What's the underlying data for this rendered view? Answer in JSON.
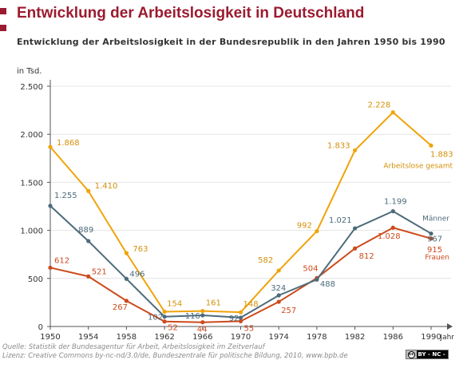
{
  "header": {
    "title": "Entwicklung der Arbeitslosigkeit in Deutschland",
    "subtitle": "Entwicklung der Arbeitslosigkeit in der Bundesrepublik in den Jahren 1950 bis 1990"
  },
  "footer": {
    "source_line1": "Quelle: Statistik der Bundesagentur für Arbeit, Arbeitslosigkeit im Zeitverlauf",
    "source_line2": "Lizenz: Creative Commons by-nc-nd/3.0/de, Bundeszentrale für politische Bildung, 2010, www.bpb.de",
    "license_badge": "BY - NC - ND",
    "license_cc": "cc"
  },
  "colors": {
    "title": "#9b1b30",
    "gesamt": "#f0a30a",
    "maenner": "#4d6b7a",
    "frauen": "#cc4a1c",
    "label_gesamt": "#d4900a",
    "grid": "#e4e4e4",
    "axis": "#555555"
  },
  "chart_data": {
    "type": "line",
    "title": "Entwicklung der Arbeitslosigkeit in Deutschland",
    "ylabel": "in Tsd.",
    "xlabel": "Jahr",
    "ylim": [
      0,
      2500
    ],
    "yticks": [
      0,
      500,
      1000,
      1500,
      2000,
      2500
    ],
    "ytick_labels": [
      "0",
      "500",
      "1.000",
      "1.500",
      "2.000",
      "2.500"
    ],
    "categories": [
      "1950",
      "1954",
      "1958",
      "1962",
      "1966",
      "1970",
      "1974",
      "1978",
      "1982",
      "1986",
      "1990"
    ],
    "grid": true,
    "series": [
      {
        "key": "gesamt",
        "name": "Arbeitslose gesamt",
        "values": [
          1868,
          1410,
          763,
          154,
          161,
          148,
          582,
          992,
          1833,
          2228,
          1883
        ],
        "labels": [
          "1.868",
          "1.410",
          "763",
          "154",
          "161",
          "148",
          "582",
          "992",
          "1.833",
          "2.228",
          "1.883"
        ]
      },
      {
        "key": "maenner",
        "name": "Männer",
        "values": [
          1255,
          889,
          496,
          102,
          116,
          92,
          324,
          488,
          1021,
          1199,
          967
        ],
        "labels": [
          "1.255",
          "889",
          "496",
          "102",
          "116",
          "92",
          "324",
          "488",
          "1.021",
          "1.199",
          "967"
        ]
      },
      {
        "key": "frauen",
        "name": "Frauen",
        "values": [
          612,
          521,
          267,
          52,
          44,
          55,
          257,
          504,
          812,
          1028,
          915
        ],
        "labels": [
          "612",
          "521",
          "267",
          "52",
          "44",
          "55",
          "257",
          "504",
          "812",
          "1.028",
          "915"
        ]
      }
    ]
  }
}
